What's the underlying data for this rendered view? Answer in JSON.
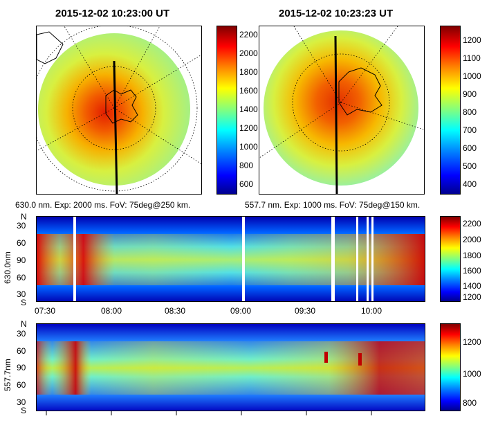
{
  "top_panels": [
    {
      "title": "2015-12-02 10:23:00 UT",
      "caption": "630.0 nm. Exp: 2000 ms. FoV: 75deg@250 km.",
      "colorbar_ticks": [
        "2200",
        "2000",
        "1800",
        "1600",
        "1400",
        "1200",
        "1000",
        "800",
        "600"
      ]
    },
    {
      "title": "2015-12-02 10:23:23 UT",
      "caption": "557.7 nm. Exp: 1000 ms. FoV: 75deg@150 km.",
      "colorbar_ticks": [
        "1200",
        "1100",
        "1000",
        "900",
        "800",
        "700",
        "600",
        "500",
        "400"
      ]
    }
  ],
  "keograms": [
    {
      "ylabel": "630.0nm",
      "yticks": [
        "N",
        "30",
        "60",
        "90",
        "60",
        "30",
        "S"
      ],
      "colorbar_ticks": [
        "2200",
        "2000",
        "1800",
        "1600",
        "1400",
        "1200"
      ]
    },
    {
      "ylabel": "557.7nm",
      "yticks": [
        "N",
        "30",
        "60",
        "90",
        "60",
        "30",
        "S"
      ],
      "colorbar_ticks": [
        "1200",
        "1000",
        "800"
      ]
    }
  ],
  "xticks": [
    "07:30",
    "08:00",
    "08:30",
    "09:00",
    "09:30",
    "10:00"
  ],
  "colors": {
    "frame": "#000000",
    "background": "#ffffff"
  },
  "chart_data": [
    {
      "type": "heatmap",
      "title": "2015-12-02 10:23:00 UT",
      "subtitle": "630.0 nm. Exp: 2000 ms. FoV: 75deg@250 km.",
      "colorbar_range": [
        400,
        2300
      ],
      "description_values": {
        "center_peak": 2200,
        "edge": 1400
      }
    },
    {
      "type": "heatmap",
      "title": "2015-12-02 10:23:23 UT",
      "subtitle": "557.7 nm. Exp: 1000 ms. FoV: 75deg@150 km.",
      "colorbar_range": [
        400,
        1270
      ],
      "description_values": {
        "center_peak": 1150,
        "edge": 850
      }
    },
    {
      "type": "heatmap",
      "ylabel": "630.0nm",
      "x_range": [
        "07:20",
        "10:25"
      ],
      "ylim": [
        "N",
        "S"
      ],
      "colorbar_range": [
        1100,
        2350
      ],
      "gaps": [
        "07:44",
        "09:00",
        "09:43",
        "09:54",
        "09:58",
        "10:00"
      ]
    },
    {
      "type": "heatmap",
      "ylabel": "557.7nm",
      "x_range": [
        "07:20",
        "10:25"
      ],
      "ylim": [
        "N",
        "S"
      ],
      "colorbar_range": [
        750,
        1320
      ]
    }
  ]
}
